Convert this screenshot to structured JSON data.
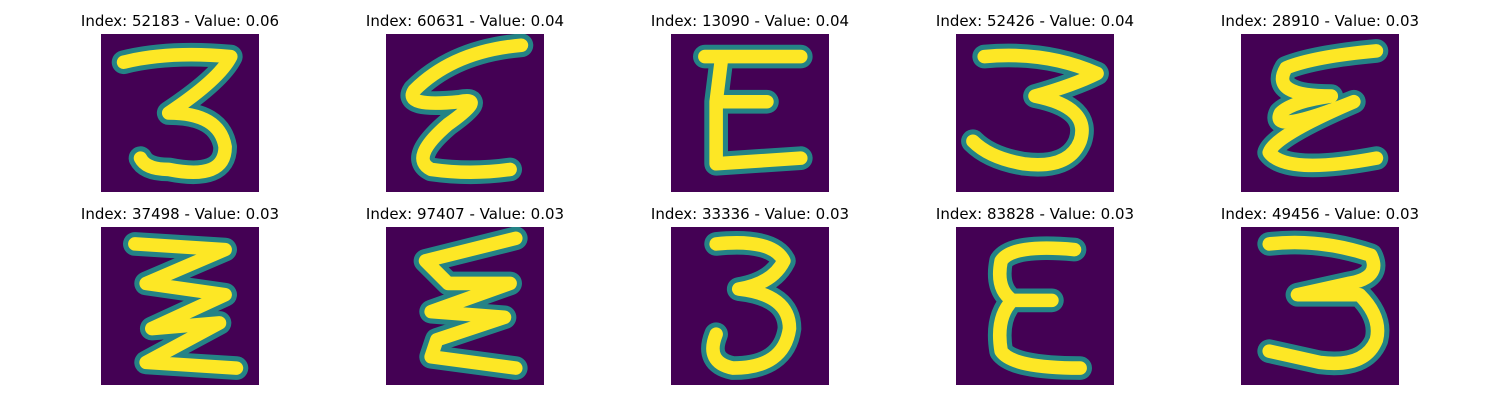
{
  "colors": {
    "background": "#440154",
    "edge": "#21918c",
    "core": "#fde725"
  },
  "panels": [
    {
      "title": "Index: 52183 - Value: 0.06",
      "glyph": "three-open-top"
    },
    {
      "title": "Index: 60631 - Value: 0.04",
      "glyph": "epsilon-slanted"
    },
    {
      "title": "Index: 13090 - Value: 0.04",
      "glyph": "capital-e-open"
    },
    {
      "title": "Index: 52426 - Value: 0.04",
      "glyph": "three-wide"
    },
    {
      "title": "Index: 28910 - Value: 0.03",
      "glyph": "epsilon-loops"
    },
    {
      "title": "Index: 37498 - Value: 0.03",
      "glyph": "zigzag-three"
    },
    {
      "title": "Index: 97407 - Value: 0.03",
      "glyph": "epsilon-zigzag"
    },
    {
      "title": "Index: 33336 - Value: 0.03",
      "glyph": "three-curly"
    },
    {
      "title": "Index: 83828 - Value: 0.03",
      "glyph": "epsilon-tall"
    },
    {
      "title": "Index: 49456 - Value: 0.03",
      "glyph": "three-flat-top"
    }
  ]
}
